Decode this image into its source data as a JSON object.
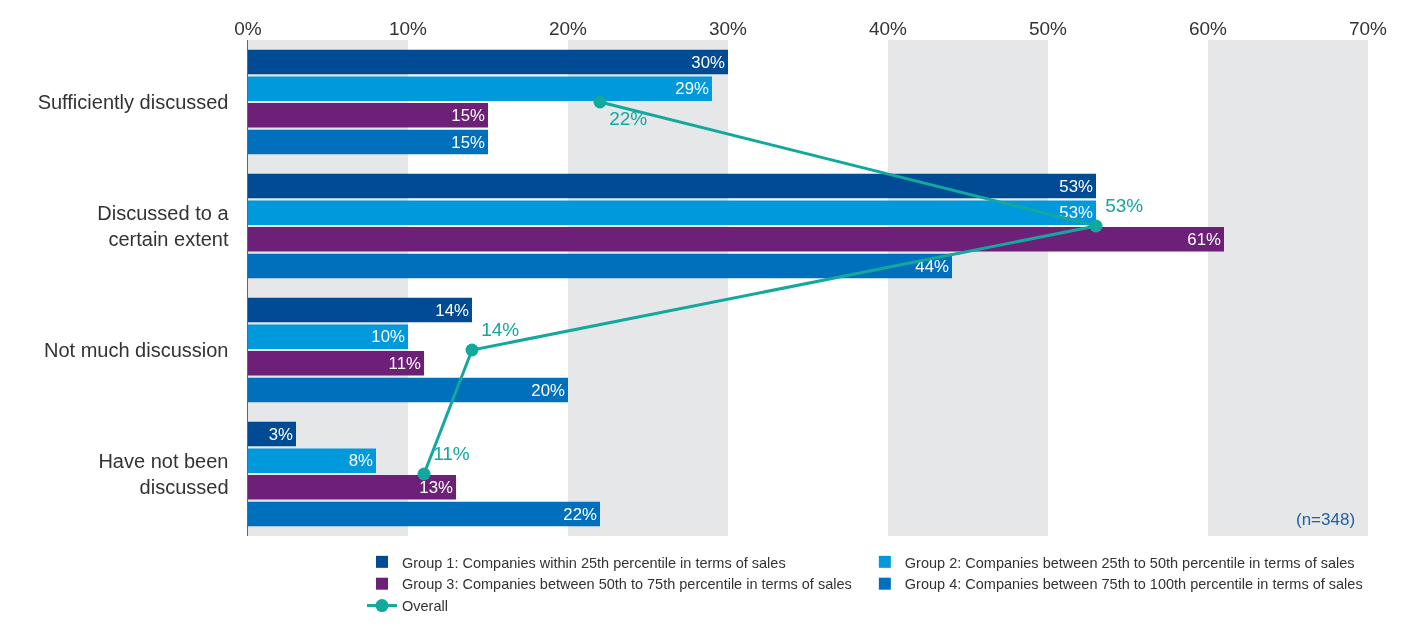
{
  "chart_data": {
    "type": "bar",
    "orientation": "horizontal",
    "categories": [
      "Sufficiently discussed",
      "Discussed to a certain extent",
      "Not much discussion",
      "Have not been discussed"
    ],
    "series": [
      {
        "name": "Group 1: Companies within 25th percentile in terms of sales",
        "color": "#004b93",
        "values": [
          30,
          53,
          14,
          3
        ],
        "value_labels": [
          "30%",
          "53%",
          "14%",
          "3%"
        ]
      },
      {
        "name": "Group 2: Companies between 25th to 50th percentile in terms of sales",
        "color": "#0099dc",
        "values": [
          29,
          53,
          10,
          8
        ],
        "value_labels": [
          "29%",
          "53%",
          "10%",
          "8%"
        ]
      },
      {
        "name": "Group 3: Companies between 50th to 75th percentile in terms of sales",
        "color": "#6d2077",
        "values": [
          15,
          61,
          11,
          13
        ],
        "value_labels": [
          "15%",
          "61%",
          "11%",
          "13%"
        ]
      },
      {
        "name": "Group 4: Companies between 75th to 100th percentile in terms of sales",
        "color": "#0070bc",
        "values": [
          15,
          44,
          20,
          22
        ],
        "value_labels": [
          "15%",
          "44%",
          "20%",
          "22%"
        ]
      },
      {
        "name": "Overall",
        "type": "line",
        "color": "#13a89e",
        "values": [
          22,
          53,
          14,
          11
        ],
        "value_labels": [
          "22%",
          "53%",
          "14%",
          "11%"
        ]
      }
    ],
    "xlim": [
      0,
      70
    ],
    "xticks": [
      {
        "value": 0,
        "label": "0%"
      },
      {
        "value": 10,
        "label": "10%"
      },
      {
        "value": 20,
        "label": "20%"
      },
      {
        "value": 30,
        "label": "30%"
      },
      {
        "value": 40,
        "label": "40%"
      },
      {
        "value": 50,
        "label": "50%"
      },
      {
        "value": 60,
        "label": "60%"
      },
      {
        "value": 70,
        "label": "70%"
      }
    ],
    "bands": [
      {
        "axis": "x",
        "from": 0,
        "to": 10,
        "color": "#e6e7e8"
      },
      {
        "axis": "x",
        "from": 20,
        "to": 30,
        "color": "#e6e7e8"
      },
      {
        "axis": "x",
        "from": 40,
        "to": 50,
        "color": "#e6e7e8"
      },
      {
        "axis": "x",
        "from": 60,
        "to": 70,
        "color": "#e6e7e8"
      }
    ],
    "marker": "circle",
    "legend": "bottom",
    "annotations": [
      "(n=348)"
    ]
  }
}
